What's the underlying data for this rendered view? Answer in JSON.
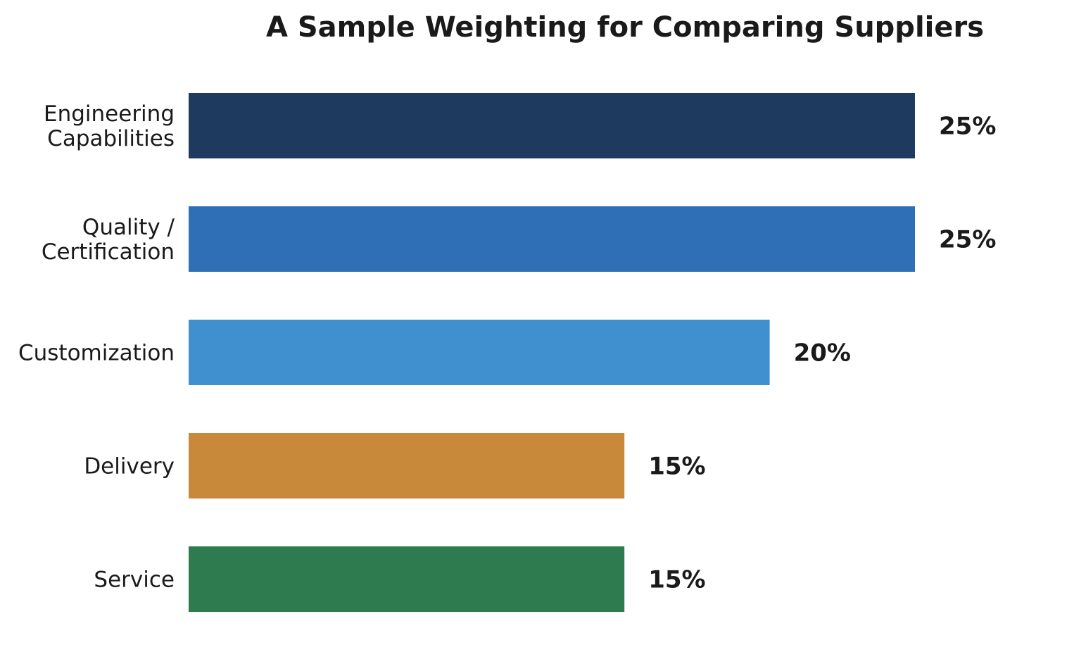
{
  "chart_data": {
    "type": "bar",
    "orientation": "horizontal",
    "title": "A Sample Weighting for Comparing Suppliers",
    "xlabel": "",
    "ylabel": "",
    "categories": [
      [
        "Engineering",
        "Capabilities"
      ],
      [
        "Quality /",
        "Certification"
      ],
      [
        "Customization"
      ],
      [
        "Delivery"
      ],
      [
        "Service"
      ]
    ],
    "values": [
      25,
      25,
      20,
      15,
      15
    ],
    "value_labels": [
      "25%",
      "25%",
      "20%",
      "15%",
      "15%"
    ],
    "colors": [
      "#1f3a5f",
      "#2f6fb5",
      "#4090d0",
      "#c8893a",
      "#2e7b4f"
    ],
    "xlim": [
      0,
      25
    ],
    "grid": false,
    "legend": "none"
  }
}
